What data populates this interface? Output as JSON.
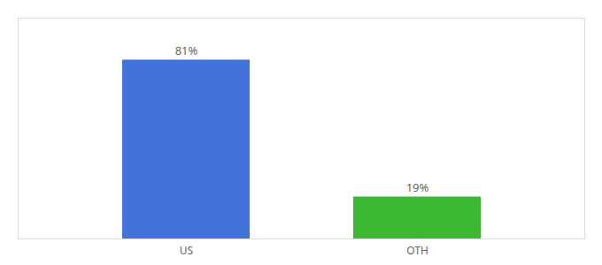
{
  "chart_data": {
    "type": "bar",
    "categories": [
      "US",
      "OTH"
    ],
    "values": [
      81,
      19
    ],
    "value_labels": [
      "81%",
      "19%"
    ],
    "colors": [
      "#4472db",
      "#3cb832"
    ],
    "ylim": [
      0,
      100
    ],
    "data_labels": true,
    "tick_labels": "x",
    "grid": false
  }
}
